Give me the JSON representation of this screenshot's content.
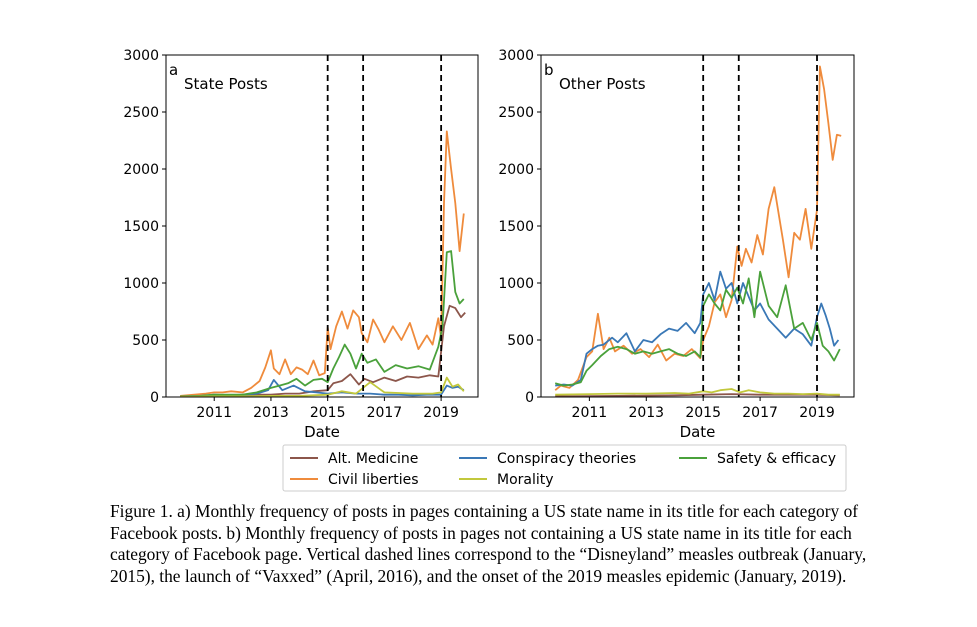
{
  "chart_data": [
    {
      "type": "line",
      "panel_letter": "a",
      "title": "State Posts",
      "xlabel": "Date",
      "ylabel": "",
      "xlim": [
        2009.3,
        2020.3
      ],
      "ylim": [
        0,
        3000
      ],
      "xticks": [
        2011,
        2013,
        2015,
        2017,
        2019
      ],
      "yticks": [
        0,
        500,
        1000,
        1500,
        2000,
        2500,
        3000
      ],
      "vlines": [
        2015.0,
        2016.25,
        2019.0
      ],
      "series": [
        {
          "name": "Alt. Medicine",
          "color": "#8c564b",
          "x": [
            2009.8,
            2010.5,
            2011.0,
            2011.5,
            2012.0,
            2012.5,
            2013.0,
            2013.5,
            2014.0,
            2014.5,
            2015.0,
            2015.2,
            2015.5,
            2015.8,
            2016.1,
            2016.3,
            2016.6,
            2017.0,
            2017.4,
            2017.8,
            2018.2,
            2018.6,
            2018.9,
            2019.1,
            2019.3,
            2019.5,
            2019.7,
            2019.85
          ],
          "y": [
            5,
            10,
            15,
            10,
            10,
            20,
            20,
            30,
            30,
            50,
            60,
            120,
            140,
            200,
            110,
            160,
            130,
            170,
            140,
            180,
            170,
            190,
            180,
            620,
            800,
            780,
            700,
            740
          ]
        },
        {
          "name": "Civil liberties",
          "color": "#ef8b3c",
          "x": [
            2009.8,
            2010.3,
            2010.7,
            2011.0,
            2011.3,
            2011.6,
            2012.0,
            2012.3,
            2012.6,
            2012.8,
            2013.0,
            2013.1,
            2013.3,
            2013.5,
            2013.7,
            2013.9,
            2014.1,
            2014.3,
            2014.5,
            2014.7,
            2014.9,
            2015.0,
            2015.1,
            2015.3,
            2015.5,
            2015.7,
            2015.9,
            2016.1,
            2016.2,
            2016.4,
            2016.6,
            2016.8,
            2017.0,
            2017.3,
            2017.6,
            2017.9,
            2018.2,
            2018.5,
            2018.7,
            2018.9,
            2019.0,
            2019.1,
            2019.2,
            2019.35,
            2019.5,
            2019.65,
            2019.8
          ],
          "y": [
            10,
            20,
            30,
            40,
            40,
            50,
            40,
            80,
            140,
            260,
            410,
            250,
            200,
            330,
            200,
            260,
            240,
            200,
            320,
            190,
            210,
            610,
            420,
            620,
            750,
            600,
            760,
            700,
            560,
            480,
            680,
            590,
            480,
            620,
            500,
            650,
            420,
            540,
            460,
            690,
            520,
            1700,
            2330,
            2000,
            1700,
            1280,
            1610
          ]
        },
        {
          "name": "Conspiracy theories",
          "color": "#3a78b6",
          "x": [
            2009.8,
            2010.5,
            2011.0,
            2011.5,
            2012.0,
            2012.5,
            2012.9,
            2013.1,
            2013.4,
            2013.8,
            2014.2,
            2014.6,
            2015.0,
            2015.5,
            2016.0,
            2016.5,
            2017.0,
            2017.5,
            2018.0,
            2018.5,
            2019.0,
            2019.2,
            2019.4,
            2019.6,
            2019.8
          ],
          "y": [
            5,
            10,
            20,
            15,
            20,
            30,
            60,
            150,
            60,
            100,
            50,
            40,
            30,
            40,
            30,
            30,
            20,
            20,
            15,
            20,
            20,
            100,
            80,
            90,
            60
          ]
        },
        {
          "name": "Safety & efficacy",
          "color": "#4aa13b",
          "x": [
            2009.8,
            2010.5,
            2011.0,
            2011.5,
            2012.0,
            2012.5,
            2013.0,
            2013.3,
            2013.6,
            2013.9,
            2014.2,
            2014.5,
            2014.8,
            2015.0,
            2015.2,
            2015.4,
            2015.6,
            2015.8,
            2016.0,
            2016.2,
            2016.4,
            2016.7,
            2017.0,
            2017.4,
            2017.8,
            2018.2,
            2018.6,
            2018.9,
            2019.05,
            2019.2,
            2019.35,
            2019.5,
            2019.65,
            2019.8
          ],
          "y": [
            5,
            10,
            20,
            20,
            20,
            40,
            80,
            100,
            120,
            160,
            100,
            150,
            160,
            130,
            250,
            350,
            460,
            380,
            250,
            380,
            300,
            330,
            220,
            280,
            250,
            270,
            240,
            440,
            620,
            1270,
            1280,
            920,
            820,
            860
          ]
        },
        {
          "name": "Morality",
          "color": "#c2c83c",
          "x": [
            2009.8,
            2011.0,
            2012.0,
            2013.0,
            2014.0,
            2015.0,
            2015.5,
            2016.0,
            2016.5,
            2017.0,
            2018.0,
            2018.7,
            2019.0,
            2019.2,
            2019.4,
            2019.6,
            2019.8
          ],
          "y": [
            2,
            5,
            5,
            10,
            10,
            20,
            50,
            30,
            130,
            40,
            30,
            30,
            40,
            170,
            90,
            110,
            50
          ]
        }
      ]
    },
    {
      "type": "line",
      "panel_letter": "b",
      "title": "Other Posts",
      "xlabel": "Date",
      "ylabel": "",
      "xlim": [
        2009.3,
        2020.3
      ],
      "ylim": [
        0,
        3000
      ],
      "xticks": [
        2011,
        2013,
        2015,
        2017,
        2019
      ],
      "yticks": [
        0,
        500,
        1000,
        1500,
        2000,
        2500,
        3000
      ],
      "vlines": [
        2015.0,
        2016.25,
        2019.0
      ],
      "series": [
        {
          "name": "Alt. Medicine",
          "color": "#8c564b",
          "x": [
            2009.8,
            2012.0,
            2014.0,
            2015.0,
            2016.0,
            2017.0,
            2018.0,
            2019.0,
            2019.8
          ],
          "y": [
            5,
            10,
            15,
            20,
            25,
            20,
            20,
            20,
            15
          ]
        },
        {
          "name": "Civil liberties",
          "color": "#ef8b3c",
          "x": [
            2009.8,
            2010.0,
            2010.3,
            2010.6,
            2010.9,
            2011.1,
            2011.3,
            2011.5,
            2011.7,
            2011.9,
            2012.2,
            2012.5,
            2012.8,
            2013.1,
            2013.4,
            2013.7,
            2014.0,
            2014.3,
            2014.6,
            2014.9,
            2015.0,
            2015.2,
            2015.4,
            2015.6,
            2015.8,
            2016.0,
            2016.2,
            2016.35,
            2016.5,
            2016.7,
            2016.9,
            2017.1,
            2017.3,
            2017.5,
            2017.8,
            2018.0,
            2018.2,
            2018.4,
            2018.6,
            2018.8,
            2019.0,
            2019.1,
            2019.25,
            2019.4,
            2019.55,
            2019.7,
            2019.85
          ],
          "y": [
            60,
            100,
            80,
            150,
            350,
            400,
            730,
            420,
            520,
            400,
            450,
            380,
            420,
            350,
            460,
            320,
            380,
            360,
            420,
            340,
            500,
            620,
            830,
            900,
            700,
            850,
            1320,
            1150,
            1300,
            1180,
            1420,
            1250,
            1650,
            1840,
            1380,
            1050,
            1440,
            1380,
            1650,
            1300,
            1640,
            2900,
            2700,
            2400,
            2080,
            2300,
            2290
          ]
        },
        {
          "name": "Conspiracy theories",
          "color": "#3a78b6",
          "x": [
            2009.8,
            2010.1,
            2010.4,
            2010.7,
            2010.9,
            2011.1,
            2011.3,
            2011.5,
            2011.8,
            2012.0,
            2012.3,
            2012.6,
            2012.9,
            2013.2,
            2013.5,
            2013.8,
            2014.1,
            2014.4,
            2014.7,
            2014.9,
            2015.0,
            2015.2,
            2015.4,
            2015.6,
            2015.8,
            2016.0,
            2016.2,
            2016.4,
            2016.6,
            2016.8,
            2017.0,
            2017.3,
            2017.6,
            2017.9,
            2018.2,
            2018.5,
            2018.8,
            2019.0,
            2019.15,
            2019.3,
            2019.45,
            2019.6,
            2019.75
          ],
          "y": [
            100,
            110,
            100,
            150,
            380,
            420,
            450,
            460,
            520,
            480,
            560,
            400,
            500,
            480,
            550,
            600,
            580,
            650,
            560,
            650,
            900,
            1000,
            850,
            1100,
            950,
            1000,
            820,
            1000,
            880,
            760,
            820,
            680,
            600,
            520,
            600,
            550,
            450,
            700,
            820,
            720,
            600,
            450,
            500
          ]
        },
        {
          "name": "Safety & efficacy",
          "color": "#4aa13b",
          "x": [
            2009.8,
            2010.1,
            2010.4,
            2010.7,
            2010.9,
            2011.1,
            2011.4,
            2011.7,
            2012.0,
            2012.3,
            2012.6,
            2012.9,
            2013.2,
            2013.5,
            2013.8,
            2014.1,
            2014.4,
            2014.7,
            2014.9,
            2015.0,
            2015.2,
            2015.4,
            2015.6,
            2015.8,
            2016.0,
            2016.2,
            2016.4,
            2016.6,
            2016.8,
            2017.0,
            2017.3,
            2017.6,
            2017.9,
            2018.2,
            2018.5,
            2018.8,
            2019.0,
            2019.2,
            2019.4,
            2019.6,
            2019.8
          ],
          "y": [
            120,
            100,
            110,
            130,
            230,
            280,
            360,
            420,
            440,
            420,
            380,
            400,
            380,
            400,
            420,
            380,
            360,
            400,
            350,
            800,
            900,
            820,
            760,
            940,
            870,
            960,
            820,
            1040,
            700,
            1100,
            800,
            700,
            980,
            600,
            650,
            500,
            650,
            450,
            400,
            320,
            420
          ]
        },
        {
          "name": "Morality",
          "color": "#c2c83c",
          "x": [
            2009.8,
            2011.0,
            2012.0,
            2013.0,
            2014.0,
            2014.5,
            2015.0,
            2015.3,
            2015.6,
            2016.0,
            2016.3,
            2016.6,
            2017.0,
            2017.5,
            2018.0,
            2018.5,
            2019.0,
            2019.4,
            2019.8
          ],
          "y": [
            20,
            25,
            30,
            30,
            35,
            30,
            50,
            40,
            60,
            70,
            40,
            60,
            40,
            30,
            30,
            25,
            30,
            20,
            20
          ]
        }
      ]
    }
  ],
  "legend": {
    "items": [
      {
        "label": "Alt. Medicine",
        "color": "#8c564b"
      },
      {
        "label": "Civil liberties",
        "color": "#ef8b3c"
      },
      {
        "label": "Conspiracy theories",
        "color": "#3a78b6"
      },
      {
        "label": "Morality",
        "color": "#c2c83c"
      },
      {
        "label": "Safety & efficacy",
        "color": "#4aa13b"
      }
    ]
  },
  "caption": "Figure 1. a) Monthly frequency of posts in pages containing a US state name in its title for each category of Facebook posts. b) Monthly frequency of posts in pages not containing a US state name in its title for each category of Facebook page. Vertical dashed lines correspond to the “Disneyland” measles outbreak (January, 2015), the launch of “Vaxxed” (April, 2016), and the onset of the 2019 measles epidemic (January, 2019)."
}
